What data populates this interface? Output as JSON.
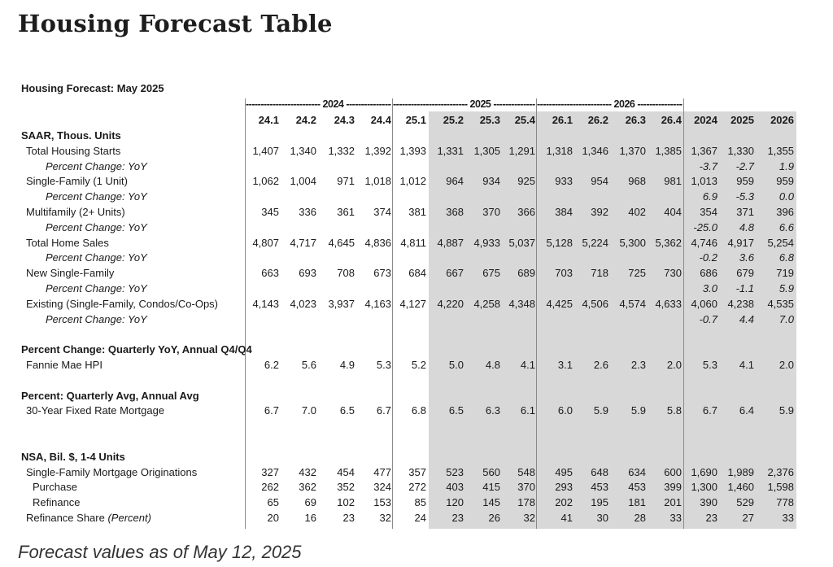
{
  "page_title": "Housing Forecast Table",
  "table_title": "Housing Forecast: May 2025",
  "year_groups": [
    "2024",
    "2025",
    "2026"
  ],
  "columns": [
    "24.1",
    "24.2",
    "24.3",
    "24.4",
    "25.1",
    "25.2",
    "25.3",
    "25.4",
    "26.1",
    "26.2",
    "26.3",
    "26.4",
    "2024",
    "2025",
    "2026"
  ],
  "rows": [
    {
      "label": "SAAR, Thous. Units",
      "type": "section",
      "values": []
    },
    {
      "label": "Total Housing Starts",
      "type": "item",
      "indent": 1,
      "values": [
        "1,407",
        "1,340",
        "1,332",
        "1,392",
        "1,393",
        "1,331",
        "1,305",
        "1,291",
        "1,318",
        "1,346",
        "1,370",
        "1,385",
        "1,367",
        "1,330",
        "1,355"
      ]
    },
    {
      "label": "Percent Change: YoY",
      "type": "pct",
      "indent": 2,
      "values": [
        "",
        "",
        "",
        "",
        "",
        "",
        "",
        "",
        "",
        "",
        "",
        "",
        "-3.7",
        "-2.7",
        "1.9"
      ]
    },
    {
      "label": "Single-Family (1 Unit)",
      "type": "item",
      "indent": 1,
      "values": [
        "1,062",
        "1,004",
        "971",
        "1,018",
        "1,012",
        "964",
        "934",
        "925",
        "933",
        "954",
        "968",
        "981",
        "1,013",
        "959",
        "959"
      ]
    },
    {
      "label": "Percent Change: YoY",
      "type": "pct",
      "indent": 2,
      "values": [
        "",
        "",
        "",
        "",
        "",
        "",
        "",
        "",
        "",
        "",
        "",
        "",
        "6.9",
        "-5.3",
        "0.0"
      ]
    },
    {
      "label": "Multifamily (2+ Units)",
      "type": "item",
      "indent": 1,
      "values": [
        "345",
        "336",
        "361",
        "374",
        "381",
        "368",
        "370",
        "366",
        "384",
        "392",
        "402",
        "404",
        "354",
        "371",
        "396"
      ]
    },
    {
      "label": "Percent Change: YoY",
      "type": "pct",
      "indent": 2,
      "values": [
        "",
        "",
        "",
        "",
        "",
        "",
        "",
        "",
        "",
        "",
        "",
        "",
        "-25.0",
        "4.8",
        "6.6"
      ]
    },
    {
      "label": "Total Home Sales",
      "type": "item",
      "indent": 1,
      "values": [
        "4,807",
        "4,717",
        "4,645",
        "4,836",
        "4,811",
        "4,887",
        "4,933",
        "5,037",
        "5,128",
        "5,224",
        "5,300",
        "5,362",
        "4,746",
        "4,917",
        "5,254"
      ]
    },
    {
      "label": "Percent Change: YoY",
      "type": "pct",
      "indent": 2,
      "values": [
        "",
        "",
        "",
        "",
        "",
        "",
        "",
        "",
        "",
        "",
        "",
        "",
        "-0.2",
        "3.6",
        "6.8"
      ]
    },
    {
      "label": "New Single-Family",
      "type": "item",
      "indent": 1,
      "values": [
        "663",
        "693",
        "708",
        "673",
        "684",
        "667",
        "675",
        "689",
        "703",
        "718",
        "725",
        "730",
        "686",
        "679",
        "719"
      ]
    },
    {
      "label": "Percent Change: YoY",
      "type": "pct",
      "indent": 2,
      "values": [
        "",
        "",
        "",
        "",
        "",
        "",
        "",
        "",
        "",
        "",
        "",
        "",
        "3.0",
        "-1.1",
        "5.9"
      ]
    },
    {
      "label": "Existing (Single-Family, Condos/Co-Ops)",
      "type": "item",
      "indent": 1,
      "values": [
        "4,143",
        "4,023",
        "3,937",
        "4,163",
        "4,127",
        "4,220",
        "4,258",
        "4,348",
        "4,425",
        "4,506",
        "4,574",
        "4,633",
        "4,060",
        "4,238",
        "4,535"
      ]
    },
    {
      "label": "Percent Change: YoY",
      "type": "pct",
      "indent": 2,
      "values": [
        "",
        "",
        "",
        "",
        "",
        "",
        "",
        "",
        "",
        "",
        "",
        "",
        "-0.7",
        "4.4",
        "7.0"
      ]
    },
    {
      "label": "",
      "type": "blank",
      "values": []
    },
    {
      "label": "Percent Change: Quarterly YoY, Annual Q4/Q4",
      "type": "section",
      "values": []
    },
    {
      "label": "Fannie Mae HPI",
      "type": "item",
      "indent": 1,
      "values": [
        "6.2",
        "5.6",
        "4.9",
        "5.3",
        "5.2",
        "5.0",
        "4.8",
        "4.1",
        "3.1",
        "2.6",
        "2.3",
        "2.0",
        "5.3",
        "4.1",
        "2.0"
      ]
    },
    {
      "label": "",
      "type": "blank",
      "values": []
    },
    {
      "label": "Percent: Quarterly Avg, Annual Avg",
      "type": "section",
      "values": []
    },
    {
      "label": "30-Year Fixed Rate Mortgage",
      "type": "item",
      "indent": 1,
      "values": [
        "6.7",
        "7.0",
        "6.5",
        "6.7",
        "6.8",
        "6.5",
        "6.3",
        "6.1",
        "6.0",
        "5.9",
        "5.9",
        "5.8",
        "6.7",
        "6.4",
        "5.9"
      ]
    },
    {
      "label": "",
      "type": "blank",
      "values": []
    },
    {
      "label": "",
      "type": "blank",
      "values": []
    },
    {
      "label": "NSA, Bil. $, 1-4 Units",
      "type": "section",
      "values": []
    },
    {
      "label": "Single-Family Mortgage Originations",
      "type": "item",
      "indent": 1,
      "values": [
        "327",
        "432",
        "454",
        "477",
        "357",
        "523",
        "560",
        "548",
        "495",
        "648",
        "634",
        "600",
        "1,690",
        "1,989",
        "2,376"
      ]
    },
    {
      "label": "Purchase",
      "type": "item",
      "indent": 3,
      "values": [
        "262",
        "362",
        "352",
        "324",
        "272",
        "403",
        "415",
        "370",
        "293",
        "453",
        "453",
        "399",
        "1,300",
        "1,460",
        "1,598"
      ]
    },
    {
      "label": "Refinance",
      "type": "item",
      "indent": 3,
      "values": [
        "65",
        "69",
        "102",
        "153",
        "85",
        "120",
        "145",
        "178",
        "202",
        "195",
        "181",
        "201",
        "390",
        "529",
        "778"
      ]
    },
    {
      "label": "Refinance Share",
      "label_suffix": "(Percent)",
      "type": "item",
      "indent": 1,
      "values": [
        "20",
        "16",
        "23",
        "32",
        "24",
        "23",
        "26",
        "32",
        "41",
        "30",
        "28",
        "33",
        "23",
        "27",
        "33"
      ]
    }
  ],
  "footnote": "Forecast values as of May 12, 2025"
}
